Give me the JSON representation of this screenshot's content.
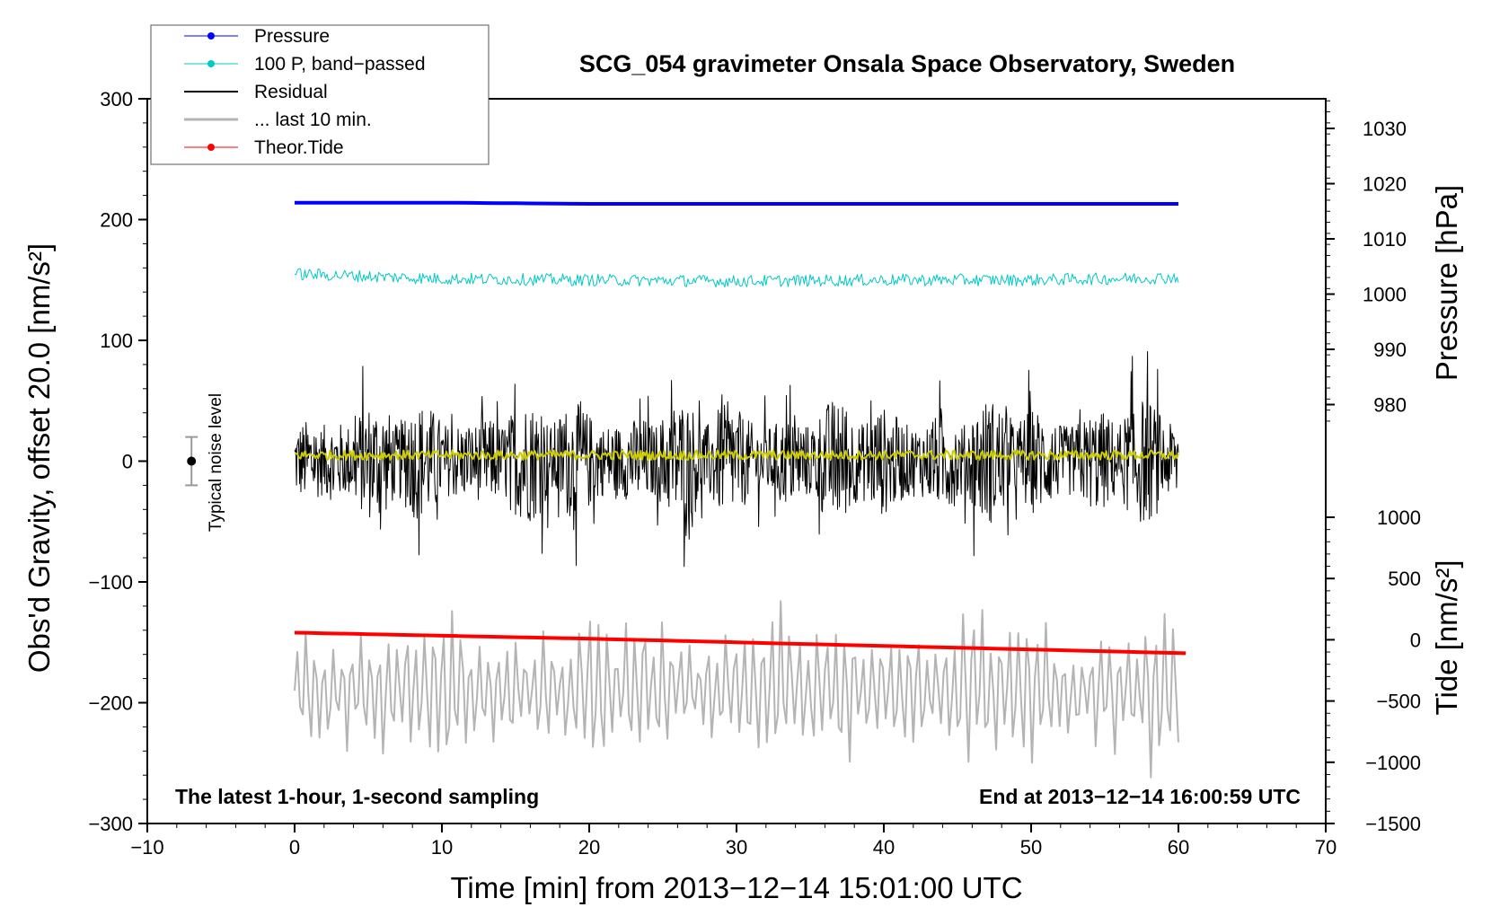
{
  "chart_data": {
    "type": "line",
    "title": "SCG_054 gravimeter Onsala Space Observatory, Sweden",
    "xlabel": "Time [min] from 2013−12−14 15:01:00 UTC",
    "ylabel_left": "Obs'd Gravity, offset 20.0 [nm/s²]",
    "ylabel_pressure": "Pressure [hPa]",
    "ylabel_tide": "Tide [nm/s²]",
    "xlim": [
      -10,
      70
    ],
    "ylim": [
      -300,
      300
    ],
    "pressure_lim": [
      975,
      1035
    ],
    "tide_lim": [
      -1500,
      1000
    ],
    "x_ticks": [
      "−10",
      "0",
      "10",
      "20",
      "30",
      "40",
      "50",
      "60",
      "70"
    ],
    "y_ticks": [
      "300",
      "200",
      "100",
      "0",
      "−100",
      "−200",
      "−300"
    ],
    "pressure_ticks": [
      "1030",
      "1020",
      "1010",
      "1000",
      "990",
      "980"
    ],
    "tide_ticks": [
      "1000",
      "500",
      "0",
      "−500",
      "−1000",
      "−1500"
    ],
    "note_left": "The latest 1-hour, 1-second sampling",
    "note_right": "End at 2013−12−14 16:00:59 UTC",
    "noise_label": "Typical noise level",
    "noise_level": {
      "x": -7,
      "y": 0,
      "half_range": 20
    },
    "grid": false,
    "legend_position": "top-left",
    "legend": [
      {
        "label": "Pressure",
        "color": "#0000ff",
        "style": "line-dot"
      },
      {
        "label": "100 P, band−passed",
        "color": "#00c8c8",
        "style": "line-dot"
      },
      {
        "label": "Residual",
        "color": "#000000",
        "style": "line"
      },
      {
        "label": "... last 10 min.",
        "color": "#b4b4b4",
        "style": "line"
      },
      {
        "label": "Theor.Tide",
        "color": "#ff0000",
        "style": "line-dot"
      }
    ],
    "series": [
      {
        "name": "Pressure",
        "color": "#0000ff",
        "axis": "left",
        "x": [
          0,
          10,
          20,
          30,
          40,
          50,
          60
        ],
        "values": [
          214,
          214,
          213,
          213,
          213,
          213,
          213
        ]
      },
      {
        "name": "100 P, band−passed",
        "color": "#00c8c8",
        "axis": "left",
        "x": [
          0,
          10,
          20,
          30,
          40,
          50,
          60
        ],
        "values": [
          155,
          151,
          150,
          149,
          150,
          150,
          152
        ],
        "noise_amplitude": 5
      },
      {
        "name": "Residual",
        "color": "#000000",
        "axis": "left",
        "x": [
          0,
          10,
          20,
          30,
          40,
          50,
          60
        ],
        "values": [
          0,
          0,
          0,
          0,
          0,
          0,
          0
        ],
        "noise_amplitude": 70
      },
      {
        "name": "Residual (smoothed)",
        "color": "#cccc00",
        "axis": "left",
        "x": [
          0,
          10,
          20,
          30,
          40,
          50,
          60
        ],
        "values": [
          5,
          5,
          5,
          5,
          5,
          5,
          5
        ],
        "noise_amplitude": 4
      },
      {
        "name": "... last 10 min.",
        "color": "#b4b4b4",
        "axis": "left",
        "x": [
          0,
          10,
          20,
          30,
          40,
          50,
          60
        ],
        "values": [
          -190,
          -190,
          -190,
          -190,
          -190,
          -190,
          -190
        ],
        "noise_amplitude": 80
      },
      {
        "name": "Theor.Tide",
        "color": "#ff0000",
        "axis": "left",
        "x": [
          0,
          20,
          40,
          60.5
        ],
        "values": [
          -142,
          -147,
          -153,
          -159
        ]
      }
    ]
  }
}
